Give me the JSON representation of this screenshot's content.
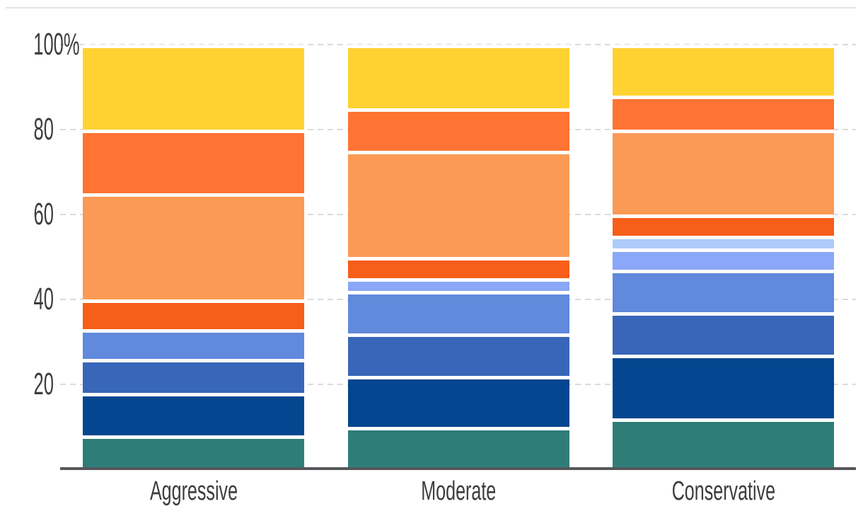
{
  "chart_data": {
    "type": "bar",
    "variant": "stacked-percent",
    "title": "",
    "legend": "none",
    "categories": [
      "Aggressive",
      "Moderate",
      "Conservative"
    ],
    "stack_order": "bottom-to-top",
    "series": [
      {
        "name": "teal",
        "color": "#2F7D78",
        "values": [
          8,
          10,
          12
        ]
      },
      {
        "name": "navy-blue",
        "color": "#04468F",
        "values": [
          10,
          12,
          15
        ]
      },
      {
        "name": "medium-blue",
        "color": "#3866B8",
        "values": [
          8,
          10,
          10
        ]
      },
      {
        "name": "cornflower-blue",
        "color": "#6189DC",
        "values": [
          7,
          10,
          10
        ]
      },
      {
        "name": "periwinkle-blue",
        "color": "#8AA7F8",
        "values": [
          0,
          3,
          5
        ]
      },
      {
        "name": "pale-blue",
        "color": "#AECBFA",
        "values": [
          0,
          0,
          3
        ]
      },
      {
        "name": "red-orange",
        "color": "#F65E19",
        "values": [
          7,
          5,
          5
        ]
      },
      {
        "name": "light-orange",
        "color": "#FB9A55",
        "values": [
          25,
          25,
          20
        ]
      },
      {
        "name": "orange",
        "color": "#FF7333",
        "values": [
          15,
          10,
          8
        ]
      },
      {
        "name": "yellow",
        "color": "#FFD231",
        "values": [
          20,
          15,
          12
        ]
      }
    ],
    "y_axis": {
      "unit": "%",
      "range": [
        0,
        100
      ],
      "tick_values": [
        20,
        40,
        60,
        80,
        100
      ],
      "tick_labels": [
        "20",
        "40",
        "60",
        "80",
        "100%"
      ],
      "gridlines": "dashed"
    }
  },
  "style": {
    "background": "#FFFFFF",
    "grid_color": "#DBDBDB",
    "axis_color": "#55575B",
    "label_color": "#3D3D3D",
    "top_border_color": "#E3E3E3",
    "segment_gap_color": "#FFFFFF"
  }
}
